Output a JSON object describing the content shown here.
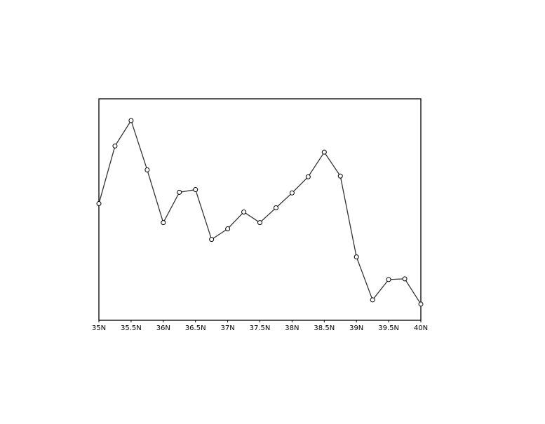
{
  "chart_data": {
    "type": "line",
    "title": "",
    "xlabel": "",
    "ylabel": "",
    "xlim": [
      35,
      40
    ],
    "ylim": [
      0,
      100
    ],
    "y_units": "relative (no y-axis labels shown)",
    "grid": false,
    "x_ticks": [
      35,
      35.5,
      36,
      36.5,
      37,
      37.5,
      38,
      38.5,
      39,
      39.5,
      40
    ],
    "x_tick_labels": [
      "35N",
      "35.5N",
      "36N",
      "36.5N",
      "37N",
      "37.5N",
      "38N",
      "38.5N",
      "39N",
      "39.5N",
      "40N"
    ],
    "line_color": "#333333",
    "marker": "open-circle",
    "x": [
      35,
      35.25,
      35.5,
      35.75,
      36,
      36.25,
      36.5,
      36.75,
      37,
      37.25,
      37.5,
      37.75,
      38,
      38.25,
      38.5,
      38.75,
      39,
      39.25,
      39.5,
      39.75,
      40
    ],
    "y": [
      52.7,
      78.7,
      90.2,
      67.9,
      44.1,
      57.8,
      59.0,
      36.5,
      41.3,
      48.9,
      44.1,
      50.8,
      57.5,
      64.8,
      75.9,
      65.1,
      28.6,
      9.2,
      18.4,
      18.7,
      7.3
    ]
  }
}
